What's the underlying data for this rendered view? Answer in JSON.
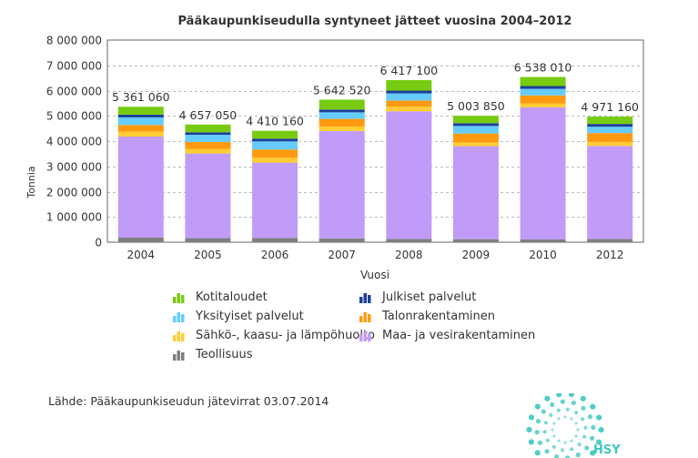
{
  "chart_data": {
    "type": "bar",
    "stacked": true,
    "title": "Pääkaupunkiseudulla syntyneet jätteet vuosina 2004–2012",
    "xlabel": "Vuosi",
    "ylabel": "Tonnia",
    "ylim": [
      0,
      8000000
    ],
    "yticks": [
      0,
      1000000,
      2000000,
      3000000,
      4000000,
      5000000,
      6000000,
      7000000,
      8000000
    ],
    "ytick_labels": [
      "0",
      "1 000 000",
      "2 000 000",
      "3 000 000",
      "4 000 000",
      "5 000 000",
      "6 000 000",
      "7 000 000",
      "8 000 000"
    ],
    "grid": true,
    "legend_position": "bottom",
    "categories": [
      "2004",
      "2005",
      "2006",
      "2007",
      "2008",
      "2009",
      "2010",
      "2012"
    ],
    "totals": [
      5361060,
      4657050,
      4410160,
      5642520,
      6417100,
      5003850,
      6538010,
      4971160
    ],
    "total_labels": [
      "5 361 060",
      "4 657 050",
      "4 410 160",
      "5 642 520",
      "6 417 100",
      "5 003 850",
      "6 538 010",
      "4 971 160"
    ],
    "series": [
      {
        "name": "Teollisuus",
        "color": "#7f7f7f",
        "values": [
          180000,
          160000,
          170000,
          150000,
          130000,
          120000,
          110000,
          130000
        ]
      },
      {
        "name": "Maa- ja vesirakentaminen",
        "color": "#c09cf8",
        "values": [
          4000000,
          3350000,
          2980000,
          4250000,
          5050000,
          3680000,
          5230000,
          3680000
        ]
      },
      {
        "name": "Sähkö-, kaasu- ja lämpöhuolto",
        "color": "#ffcc33",
        "values": [
          200000,
          180000,
          190000,
          180000,
          180000,
          150000,
          150000,
          160000
        ]
      },
      {
        "name": "Talonrakentaminen",
        "color": "#ff9910",
        "values": [
          260000,
          280000,
          330000,
          300000,
          250000,
          350000,
          320000,
          350000
        ]
      },
      {
        "name": "Yksityiset palvelut",
        "color": "#66ccff",
        "values": [
          300000,
          280000,
          320000,
          260000,
          280000,
          300000,
          260000,
          250000
        ]
      },
      {
        "name": "Julkiset palvelut",
        "color": "#1c3f9a",
        "values": [
          110000,
          100000,
          110000,
          110000,
          110000,
          110000,
          110000,
          110000
        ]
      },
      {
        "name": "Kotitaloudet",
        "color": "#77cc11",
        "values": [
          311060,
          307050,
          310160,
          392520,
          417100,
          293850,
          358010,
          291160
        ]
      }
    ]
  },
  "legend": {
    "items": [
      {
        "label": "Kotitaloudet",
        "color": "#77cc11"
      },
      {
        "label": "Julkiset palvelut",
        "color": "#1c3f9a"
      },
      {
        "label": "Yksityiset palvelut",
        "color": "#66ccff"
      },
      {
        "label": "Talonrakentaminen",
        "color": "#ff9910"
      },
      {
        "label": "Sähkö-, kaasu- ja lämpöhuolto",
        "color": "#ffcc33"
      },
      {
        "label": "Maa- ja vesirakentaminen",
        "color": "#c09cf8"
      },
      {
        "label": "Teollisuus",
        "color": "#7f7f7f"
      }
    ]
  },
  "source": "Lähde: Pääkaupunkiseudun jätevirrat 03.07.2014",
  "logo": {
    "text": "HSY",
    "color": "#3cc8c0"
  }
}
